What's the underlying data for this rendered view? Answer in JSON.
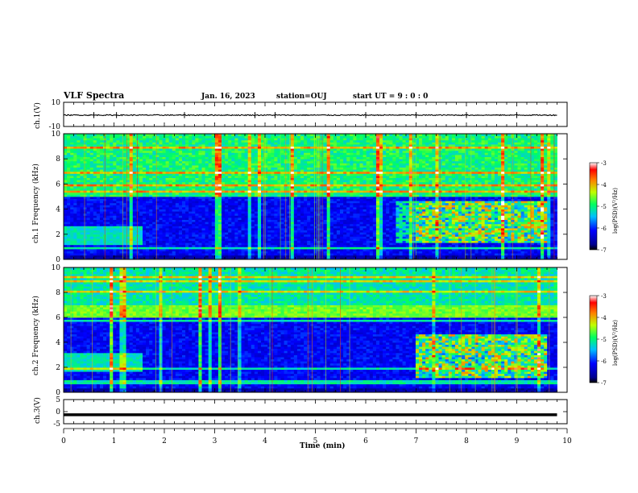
{
  "header": {
    "title": "VLF Spectra",
    "date": "Jan. 16, 2023",
    "station": "station=OUJ",
    "start": "start UT = 9 : 0 : 0"
  },
  "chart_data": [
    {
      "type": "line",
      "panel": "ch1-waveform",
      "ylabel": "ch.1(V)",
      "ylim": [
        -10,
        10
      ],
      "yticks": [
        "10",
        "-10"
      ],
      "x_unit": "min",
      "baseline": -0.6,
      "spike_times": [
        0.6,
        1.05,
        2.4,
        3.8,
        4.2,
        6.0,
        7.0,
        8.0,
        9.0
      ]
    },
    {
      "type": "heatmap",
      "panel": "ch1-spectrogram",
      "ylabel": "ch.1 Frequency (kHz)",
      "ylim": [
        0,
        10
      ],
      "yticks": [
        "0",
        "2",
        "4",
        "6",
        "8",
        "10"
      ],
      "xlim": [
        0,
        9.8
      ],
      "colorbar": {
        "label": "log(PSD)(V²/Hz)",
        "ticks": [
          "-3",
          "-4",
          "-5",
          "-6",
          "-7"
        ],
        "range": [
          -7,
          -3
        ],
        "scale": "jet"
      },
      "features": {
        "bright_band_khz": [
          5.0,
          10.0
        ],
        "low_band_early_khz": [
          1.2,
          2.6
        ],
        "low_band_early_min": [
          0.0,
          1.6
        ],
        "emission_late_khz": [
          1.4,
          4.6
        ],
        "emission_late_min": [
          7.0,
          9.6
        ],
        "emission_mid_min": [
          6.6,
          7.0
        ]
      }
    },
    {
      "type": "heatmap",
      "panel": "ch2-spectrogram",
      "ylabel": "ch.2 Frequency (kHz)",
      "ylim": [
        0,
        10
      ],
      "yticks": [
        "0",
        "2",
        "4",
        "6",
        "8",
        "10"
      ],
      "xlim": [
        0,
        9.8
      ],
      "colorbar": {
        "label": "log(PSD)(V²/Hz)",
        "ticks": [
          "-3",
          "-4",
          "-5",
          "-6",
          "-7"
        ],
        "range": [
          -7,
          -3
        ],
        "scale": "jet"
      },
      "features": {
        "bright_band_khz": [
          6.0,
          7.0
        ],
        "diffuse_upper_khz": [
          7.0,
          10.0
        ],
        "low_band_early_khz": [
          1.6,
          3.2
        ],
        "low_band_early_min": [
          0.0,
          1.6
        ],
        "emission_late_khz": [
          1.2,
          4.6
        ],
        "emission_late_min": [
          7.0,
          9.6
        ]
      }
    },
    {
      "type": "line",
      "panel": "ch3-waveform",
      "ylabel": "ch.3(V)",
      "ylim": [
        -5,
        5
      ],
      "yticks": [
        "5",
        "0",
        "-5"
      ],
      "baseline": -1.3,
      "xlabel": "Time (min)",
      "xlim": [
        0,
        10
      ],
      "xticks": [
        "0",
        "1",
        "2",
        "3",
        "4",
        "5",
        "6",
        "7",
        "8",
        "9",
        "10"
      ]
    }
  ]
}
